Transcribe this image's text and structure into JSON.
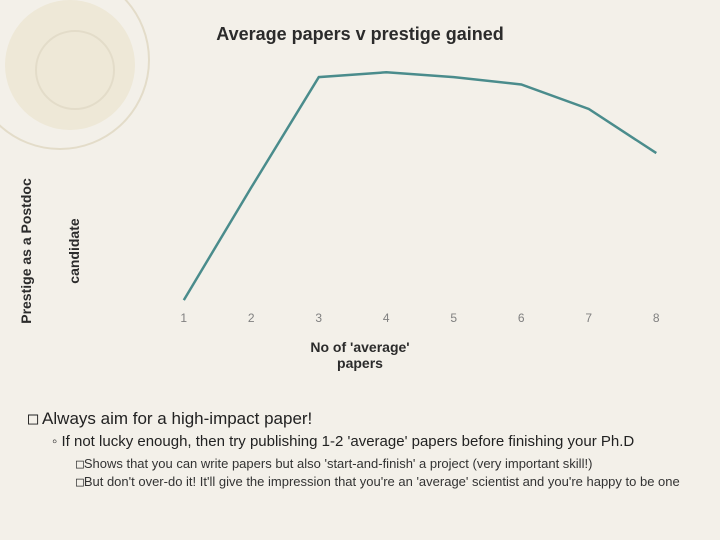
{
  "background_color": "#f3f0e9",
  "decorative_ring_color": "#e3dcc9",
  "decorative_fill_color": "#eee8d7",
  "chart": {
    "type": "line",
    "title": "Average papers v prestige gained",
    "title_fontsize": 18,
    "title_color": "#2b2b2b",
    "ylabel_line1": "Prestige as a Postdoc",
    "ylabel_line2": "candidate",
    "xlabel_line1": "No of 'average'",
    "xlabel_line2": "papers",
    "label_fontsize": 14,
    "x_categories": [
      "1",
      "2",
      "3",
      "4",
      "5",
      "6",
      "7",
      "8"
    ],
    "x_min": 1,
    "x_max": 8,
    "y_min": 0,
    "y_max": 100,
    "values": [
      2,
      48,
      93,
      95,
      93,
      90,
      80,
      62
    ],
    "line_color": "#4a8c8c",
    "line_width": 2.5,
    "tick_color": "#808080",
    "tick_fontsize": 12,
    "plot_background": "transparent"
  },
  "bullets": {
    "b1_prefix": "□",
    "b1_label": "Always",
    "b1_rest": " aim for a high-impact paper!",
    "b2": "If not lucky enough, then try publishing 1-2 'average' papers before finishing your Ph.D",
    "b3a_prefix": "□",
    "b3a": "Shows that you can write papers but also 'start-and-finish' a project (very important skill!)",
    "b3b_prefix": "□",
    "b3b": "But don't over-do it! It'll give the impression that you're an 'average' scientist and you're happy to be one"
  }
}
